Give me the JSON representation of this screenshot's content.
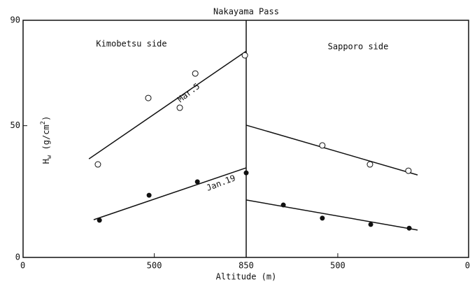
{
  "chart_data": [
    {
      "type": "scatter",
      "title": "Nakayama Pass",
      "panel_label": "Kimobetsu side",
      "x_label": "Altitude (m)",
      "y_label": {
        "main": "H",
        "sub": "w",
        "rest": " (g/cm",
        "sup": "2",
        "end": ")"
      },
      "xlim": [
        0,
        850
      ],
      "xticks": [
        0,
        500,
        850
      ],
      "ylim": [
        0,
        90
      ],
      "yticks": [
        0,
        50,
        90
      ],
      "series": [
        {
          "marker": "open",
          "x": [
            285,
            477,
            597,
            656,
            845
          ],
          "values": [
            35.3,
            60.5,
            56.8,
            69.8,
            76.7
          ]
        },
        {
          "marker": "filled",
          "x": [
            291,
            480,
            664,
            850
          ],
          "values": [
            14.1,
            23.6,
            28.7,
            32.1
          ]
        }
      ],
      "fits": [
        {
          "x": [
            251,
            850
          ],
          "values": [
            37.4,
            78.3
          ]
        },
        {
          "x": [
            269,
            850
          ],
          "values": [
            14.3,
            34.0
          ]
        }
      ],
      "annotations": [
        "Mar.5",
        "Jan.19"
      ]
    },
    {
      "type": "scatter",
      "panel_label": "Sapporo side",
      "xlim": [
        850,
        0
      ],
      "xticks": [
        500,
        0
      ],
      "ylim": [
        0,
        90
      ],
      "series": [
        {
          "marker": "open",
          "x": [
            559,
            377,
            230
          ],
          "values": [
            42.5,
            35.3,
            32.9
          ]
        },
        {
          "marker": "filled",
          "x": [
            708,
            559,
            374,
            227
          ],
          "values": [
            19.9,
            14.9,
            12.5,
            11.1
          ]
        }
      ],
      "fits": [
        {
          "x": [
            850,
            195
          ],
          "values": [
            50.2,
            31.3
          ]
        },
        {
          "x": [
            850,
            195
          ],
          "values": [
            21.8,
            10.4
          ]
        }
      ]
    }
  ]
}
